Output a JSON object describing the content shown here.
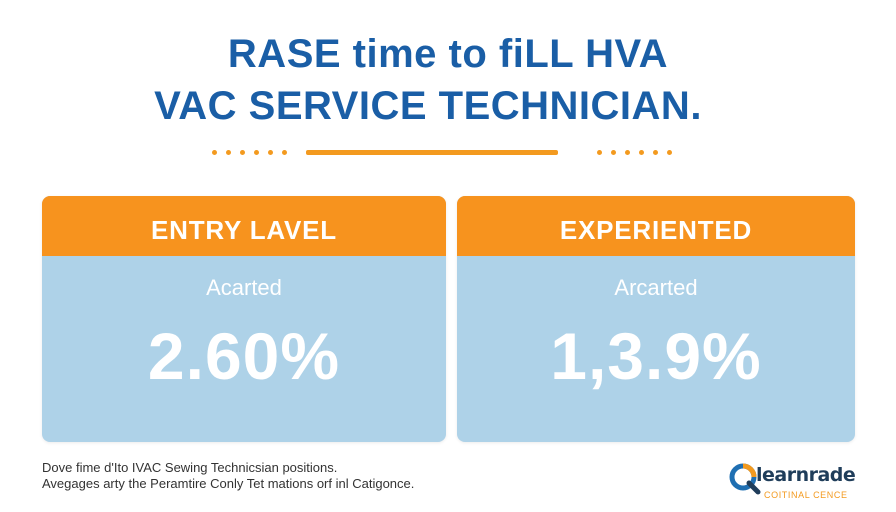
{
  "header": {
    "title_line_1": "RASE time to fiLL HVA",
    "title_line_2": "VAC SERVICE TECHNICIAN."
  },
  "cards": [
    {
      "header": "ENTRY LAVEL",
      "subtitle": "Acarted",
      "value": "2.60%"
    },
    {
      "header": "EXPERIENTED",
      "subtitle": "Arcarted",
      "value": "1,3.9%"
    }
  ],
  "footnote": {
    "line_1": "Dove fime d'Ito IVAC Sewing Technicsian positions.",
    "line_2": "Avegages arty the Peramtire Conly Tet mations orf inl Catigonce."
  },
  "logo": {
    "name": "learnrade",
    "tagline": "COITINAL CENCE"
  },
  "colors": {
    "title_blue": "#1a5ea6",
    "accent_orange": "#f7931e",
    "card_blue": "#aed2e8"
  }
}
